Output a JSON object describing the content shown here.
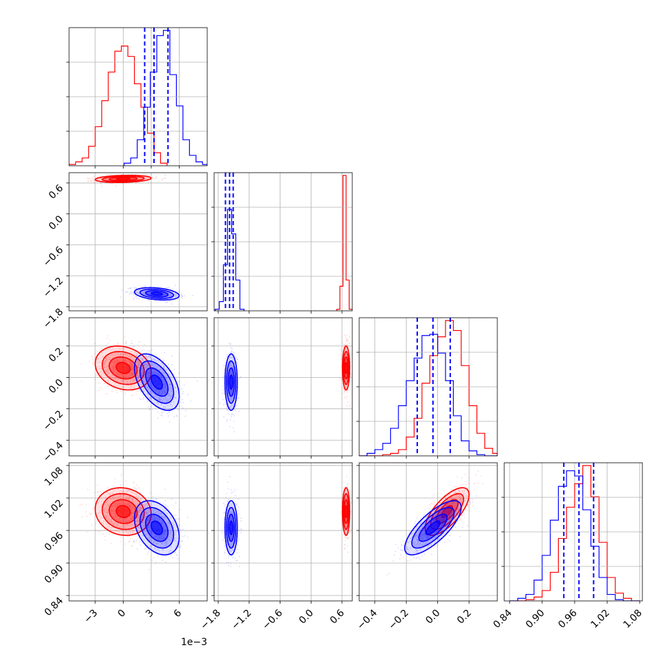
{
  "figure": {
    "background": "#ffffff",
    "colors": {
      "sample_a": "#ff0000",
      "sample_b": "#0000ff",
      "grid": "#b0b0b0"
    },
    "parameter_offsets": [
      "1e−3",
      "",
      "",
      ""
    ]
  },
  "chart_data": {
    "type": "corner",
    "parameters": [
      {
        "ticks": [
          -3,
          0,
          3,
          6
        ],
        "tick_labels": [
          "−3",
          "0",
          "3",
          "6"
        ],
        "range": [
          -5.8,
          9.0
        ],
        "offset_label": "1e−3"
      },
      {
        "ticks": [
          -1.8,
          -1.2,
          -0.6,
          0.0,
          0.6
        ],
        "tick_labels": [
          "−1.8",
          "−1.2",
          "−0.6",
          "0.0",
          "0.6"
        ],
        "range": [
          -1.88,
          0.8
        ]
      },
      {
        "ticks": [
          -0.4,
          -0.2,
          0.0,
          0.2
        ],
        "tick_labels": [
          "−0.4",
          "−0.2",
          "0.0",
          "0.2"
        ],
        "range": [
          -0.5,
          0.38
        ]
      },
      {
        "ticks": [
          0.84,
          0.9,
          0.96,
          1.02,
          1.08
        ],
        "tick_labels": [
          "0.84",
          "0.90",
          "0.96",
          "1.02",
          "1.08"
        ],
        "range": [
          0.83,
          1.085
        ]
      }
    ],
    "series": [
      {
        "name": "",
        "color": "#ff0000",
        "mean": [
          0.0,
          0.68,
          0.06,
          0.995
        ],
        "std": [
          1.5,
          0.035,
          0.07,
          0.022
        ],
        "corr": [
          [
            1,
            0.2,
            -0.2,
            -0.1
          ],
          [
            0.2,
            1,
            0,
            0
          ],
          [
            -0.2,
            0,
            1,
            0.7
          ],
          [
            -0.1,
            0,
            0.7,
            1
          ]
        ]
      },
      {
        "name": "",
        "color": "#0000ff",
        "mean": [
          3.6,
          -1.55,
          -0.03,
          0.965
        ],
        "std": [
          1.2,
          0.06,
          0.09,
          0.025
        ],
        "corr": [
          [
            1,
            -0.3,
            -0.5,
            -0.35
          ],
          [
            -0.3,
            1,
            0,
            0
          ],
          [
            -0.5,
            0,
            1,
            0.75
          ],
          [
            -0.35,
            0,
            0.75,
            1
          ]
        ]
      }
    ],
    "quantile_lines": {
      "color": "#0000ff",
      "style": "dashed",
      "values": [
        [
          2.3,
          3.3,
          4.8
        ],
        [
          -1.66,
          -1.58,
          -1.51
        ],
        [
          -0.13,
          -0.03,
          0.08
        ],
        [
          0.94,
          0.968,
          0.995
        ]
      ]
    },
    "histograms": [
      {
        "series": "#ff0000",
        "edges": [
          -5.8,
          -5.1,
          -4.4,
          -3.7,
          -3.0,
          -2.3,
          -1.6,
          -0.9,
          -0.2,
          0.5,
          1.2,
          1.9,
          2.6,
          3.3,
          4.0,
          4.7
        ],
        "counts": [
          1,
          3,
          6,
          15,
          30,
          50,
          72,
          88,
          92,
          84,
          63,
          45,
          25,
          10,
          2
        ]
      },
      {
        "series": "#0000ff",
        "edges": [
          0.1,
          0.8,
          1.5,
          2.2,
          2.9,
          3.6,
          4.3,
          5.0,
          5.7,
          6.4,
          7.1,
          7.8,
          8.5,
          9.0
        ],
        "counts": [
          2,
          6,
          20,
          45,
          72,
          100,
          104,
          70,
          46,
          20,
          8,
          3,
          1
        ]
      },
      {
        "series": "#ff0000",
        "edges": [
          0.5,
          0.56,
          0.62,
          0.68,
          0.74,
          0.8
        ],
        "counts": [
          1,
          16,
          88,
          20,
          1
        ]
      },
      {
        "series": "#0000ff",
        "edges": [
          -1.86,
          -1.78,
          -1.7,
          -1.62,
          -1.54,
          -1.46,
          -1.38,
          -1.3
        ],
        "counts": [
          1,
          6,
          30,
          66,
          50,
          20,
          1
        ]
      },
      {
        "series": "#ff0000",
        "edges": [
          -0.5,
          -0.45,
          -0.4,
          -0.35,
          -0.3,
          -0.25,
          -0.2,
          -0.15,
          -0.1,
          -0.05,
          0.0,
          0.05,
          0.1,
          0.15,
          0.2,
          0.25,
          0.3,
          0.35,
          0.38
        ],
        "counts": [
          0,
          0,
          0,
          1,
          2,
          5,
          15,
          30,
          58,
          80,
          95,
          108,
          100,
          72,
          40,
          18,
          6,
          2
        ]
      },
      {
        "series": "#0000ff",
        "edges": [
          -0.5,
          -0.45,
          -0.4,
          -0.35,
          -0.3,
          -0.25,
          -0.2,
          -0.15,
          -0.1,
          -0.05,
          0.0,
          0.05,
          0.1,
          0.15,
          0.2,
          0.25,
          0.3,
          0.35,
          0.38
        ],
        "counts": [
          0,
          2,
          5,
          10,
          22,
          40,
          60,
          78,
          96,
          97,
          82,
          60,
          32,
          12,
          4,
          1,
          0,
          0
        ]
      },
      {
        "series": "#ff0000",
        "edges": [
          0.84,
          0.855,
          0.87,
          0.885,
          0.9,
          0.915,
          0.93,
          0.945,
          0.96,
          0.975,
          0.99,
          1.005,
          1.02,
          1.035,
          1.05,
          1.065,
          1.08
        ],
        "counts": [
          0,
          0,
          1,
          3,
          8,
          22,
          48,
          72,
          90,
          104,
          80,
          45,
          18,
          6,
          2,
          0
        ]
      },
      {
        "series": "#0000ff",
        "edges": [
          0.84,
          0.855,
          0.87,
          0.885,
          0.9,
          0.915,
          0.93,
          0.945,
          0.96,
          0.975,
          0.99,
          1.005,
          1.02,
          1.035,
          1.05,
          1.065,
          1.08
        ],
        "counts": [
          0,
          2,
          5,
          16,
          35,
          62,
          88,
          100,
          96,
          70,
          42,
          18,
          5,
          1,
          0,
          0
        ]
      }
    ],
    "grid": true,
    "xlabel": "",
    "ylabel": ""
  }
}
